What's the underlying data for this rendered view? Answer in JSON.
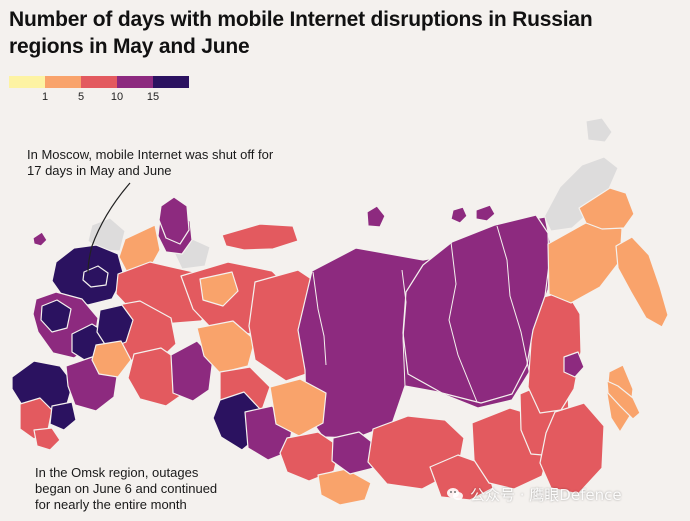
{
  "title": "Number of days with mobile Internet disruptions in Russian regions in May and June",
  "legend": {
    "labels": [
      "1",
      "5",
      "10",
      "15"
    ],
    "colors": [
      "#fdf3a3",
      "#f9a36b",
      "#e35a5f",
      "#8d2a7f",
      "#2b1260"
    ]
  },
  "annotations": {
    "moscow": "In Moscow, mobile Internet was shut off for\n17 days in May and June",
    "omsk": "In the Omsk region, outages\nbegan on June 6 and continued\nfor nearly the entire month"
  },
  "watermark": {
    "text": "公众号 · 鹰眼Defence",
    "icon": "wechat-icon"
  },
  "map": {
    "no_data_color": "#dddcdc",
    "border_color": "#f4f1ee"
  }
}
